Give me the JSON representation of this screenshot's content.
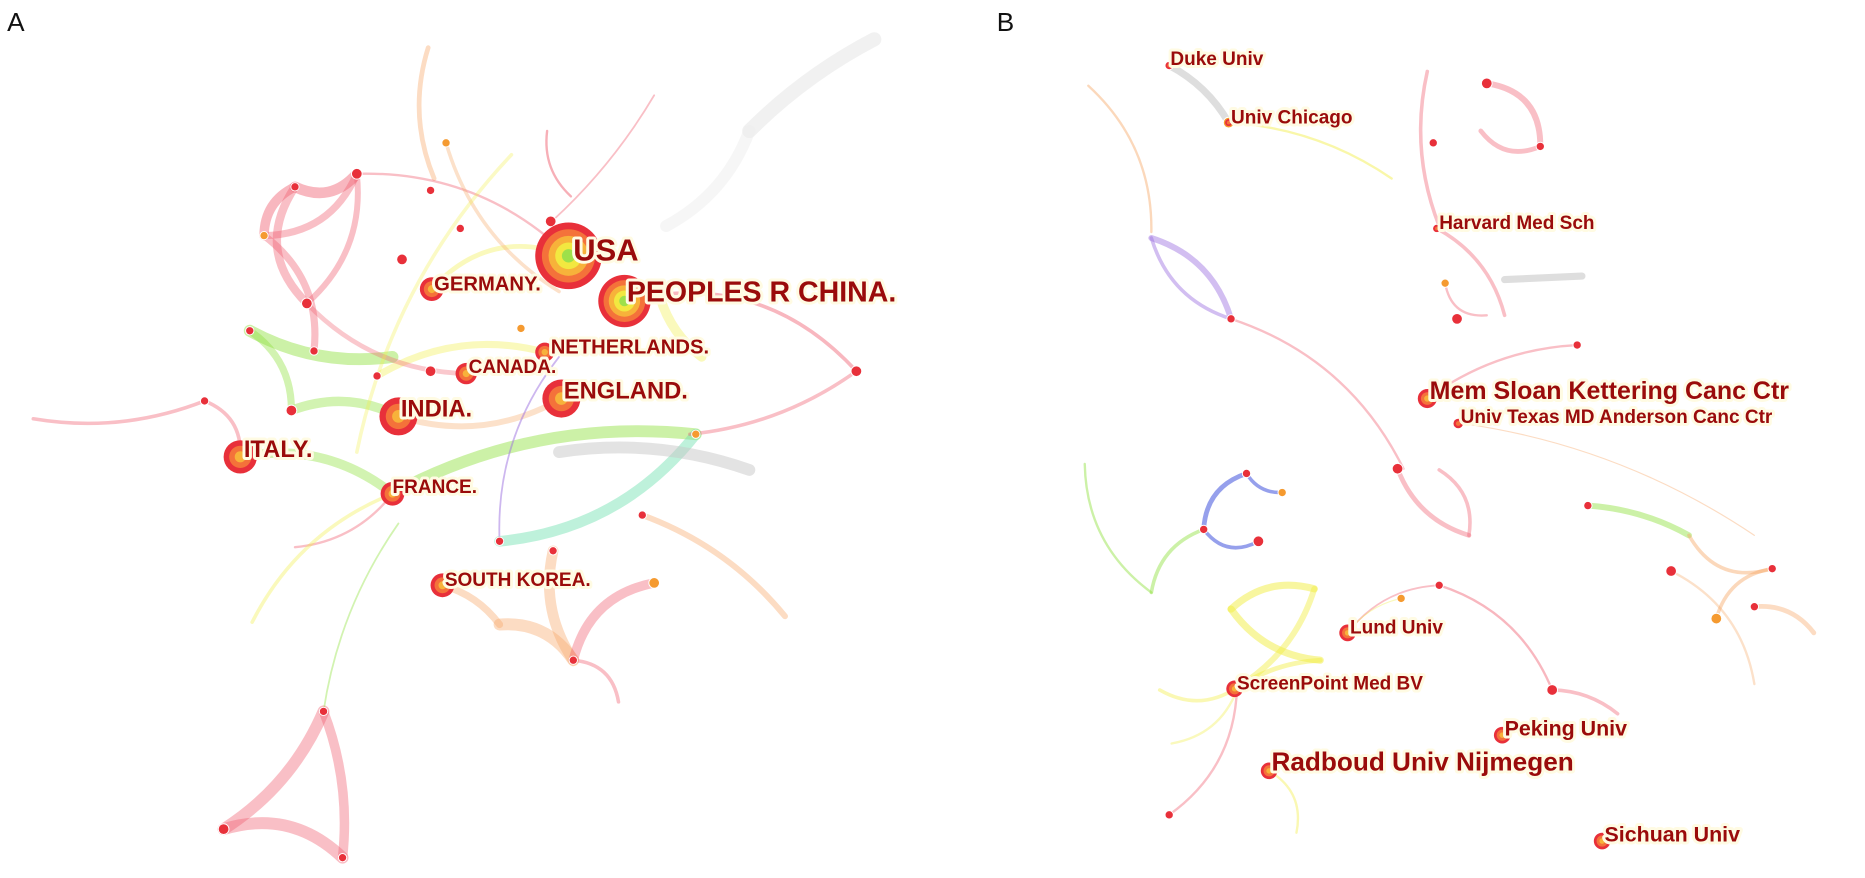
{
  "panels": [
    {
      "label": "A",
      "nodes": [
        {
          "label": "USA"
        },
        {
          "label": "PEOPLES R CHINA."
        },
        {
          "label": "GERMANY."
        },
        {
          "label": "NETHERLANDS."
        },
        {
          "label": "CANADA."
        },
        {
          "label": "ENGLAND."
        },
        {
          "label": "INDIA."
        },
        {
          "label": "ITALY."
        },
        {
          "label": "FRANCE."
        },
        {
          "label": "SOUTH KOREA."
        }
      ]
    },
    {
      "label": "B",
      "nodes": [
        {
          "label": "Duke Univ"
        },
        {
          "label": "Univ Chicago"
        },
        {
          "label": "Harvard Med Sch"
        },
        {
          "label": "Mem Sloan Kettering Canc Ctr"
        },
        {
          "label": "Univ Texas MD Anderson Canc Ctr"
        },
        {
          "label": "Lund Univ"
        },
        {
          "label": "ScreenPoint Med BV"
        },
        {
          "label": "Peking Univ"
        },
        {
          "label": "Radboud Univ Nijmegen"
        },
        {
          "label": "Sichuan Univ"
        }
      ]
    }
  ]
}
